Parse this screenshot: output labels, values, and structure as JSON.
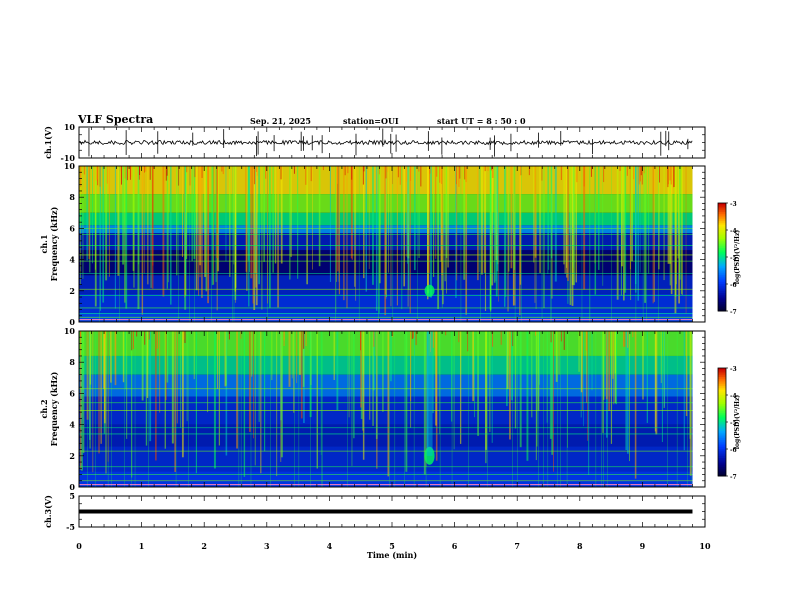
{
  "header": {
    "title": "VLF Spectra",
    "date": "Sep. 21, 2025",
    "station": "station=OUI",
    "start": "start  UT =  8 : 50 : 0"
  },
  "chart_data": [
    {
      "type": "line",
      "id": "ch1-waveform",
      "ylabel": "ch.1(V)",
      "ylim": [
        -10,
        10
      ],
      "yticks": [
        -10,
        10
      ],
      "xlim": [
        0,
        10
      ],
      "trace_level": 0,
      "trace_end": 9.8
    },
    {
      "type": "heatmap",
      "id": "ch1-spectrogram",
      "ylabel_top": "ch.1",
      "ylabel": "Frequency  (kHz)",
      "ylim": [
        0,
        10
      ],
      "yticks": [
        0,
        2,
        4,
        6,
        8,
        10
      ],
      "xlim": [
        0,
        10
      ],
      "data_end": 9.8,
      "colorbar": {
        "label": "log(PSD)(V²/Hz)",
        "ticks": [
          -3,
          -4,
          -5,
          -6,
          -7
        ],
        "range": [
          -7,
          -3
        ]
      }
    },
    {
      "type": "heatmap",
      "id": "ch2-spectrogram",
      "ylabel_top": "ch.2",
      "ylabel": "Frequency  (kHz)",
      "ylim": [
        0,
        10
      ],
      "yticks": [
        0,
        2,
        4,
        6,
        8,
        10
      ],
      "xlim": [
        0,
        10
      ],
      "data_end": 9.8,
      "colorbar": {
        "label": "log(PSD)(V²/Hz)",
        "ticks": [
          -3,
          -4,
          -5,
          -6,
          -7
        ],
        "range": [
          -7,
          -3
        ]
      }
    },
    {
      "type": "line",
      "id": "ch3-waveform",
      "ylabel": "ch.3(V)",
      "ylim": [
        -5,
        5
      ],
      "yticks": [
        -5,
        5
      ],
      "xlim": [
        0,
        10
      ],
      "trace_level": 0,
      "trace_end": 9.8,
      "xlabel": "Time  (min)",
      "xticks": [
        0,
        1,
        2,
        3,
        4,
        5,
        6,
        7,
        8,
        9,
        10
      ]
    }
  ],
  "colors": {
    "background": "#ffffff",
    "axis": "#000000",
    "spectrogram_low": "#000033",
    "spectrogram_mid": "#1060ff",
    "spectrogram_high": "#00ff40"
  }
}
